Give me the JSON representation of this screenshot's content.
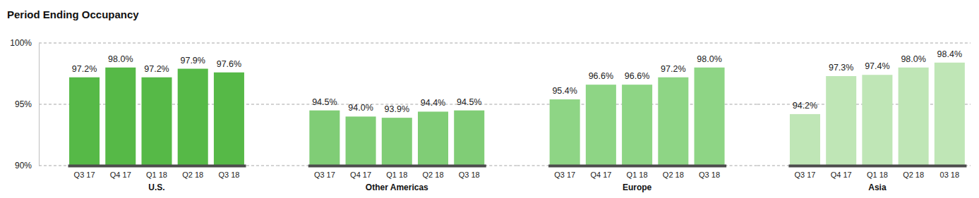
{
  "chart_data": [
    {
      "type": "bar",
      "title": "Period Ending Occupancy",
      "xlabel": "U.S.",
      "categories": [
        "Q3 17",
        "Q4 17",
        "Q1 18",
        "Q2 18",
        "Q3 18"
      ],
      "values": [
        97.2,
        98.0,
        97.2,
        97.9,
        97.6
      ],
      "value_labels": [
        "97.2%",
        "98.0%",
        "97.2%",
        "97.9%",
        "97.6%"
      ],
      "color": "#56b947",
      "ylim": [
        90,
        100
      ],
      "yticks": [
        {
          "value": 90,
          "label": "90%"
        },
        {
          "value": 95,
          "label": "95%"
        },
        {
          "value": 100,
          "label": "100%"
        }
      ],
      "grid": true,
      "data_labels": true,
      "tick_labels": true
    },
    {
      "type": "bar",
      "xlabel": "Other Americas",
      "categories": [
        "Q3 17",
        "Q4 17",
        "Q1 18",
        "Q2 18",
        "Q3 18"
      ],
      "values": [
        94.5,
        94.0,
        93.9,
        94.4,
        94.5
      ],
      "value_labels": [
        "94.5%",
        "94.0%",
        "93.9%",
        "94.4%",
        "94.5%"
      ],
      "color": "#80cd76",
      "ylim": [
        90,
        100
      ],
      "yticks": [
        90,
        95,
        100
      ],
      "grid": true,
      "data_labels": true,
      "tick_labels": "x"
    },
    {
      "type": "bar",
      "xlabel": "Europe",
      "categories": [
        "Q3 17",
        "Q4 17",
        "Q1 18",
        "Q2 18",
        "Q3 18"
      ],
      "values": [
        95.4,
        96.6,
        96.6,
        97.2,
        98.0
      ],
      "value_labels": [
        "95.4%",
        "96.6%",
        "96.6%",
        "97.2%",
        "98.0%"
      ],
      "color": "#8ed585",
      "ylim": [
        90,
        100
      ],
      "yticks": [
        90,
        95,
        100
      ],
      "grid": true,
      "data_labels": true,
      "tick_labels": "x"
    },
    {
      "type": "bar",
      "xlabel": "Asia",
      "categories": [
        "Q3 17",
        "Q4 17",
        "Q1 18",
        "Q2 18",
        "03 18"
      ],
      "values": [
        94.2,
        97.3,
        97.4,
        98.0,
        98.4
      ],
      "value_labels": [
        "94.2%",
        "97.3%",
        "97.4%",
        "98.0%",
        "98.4%"
      ],
      "color": "#bfe6b6",
      "ylim": [
        90,
        100
      ],
      "yticks": [
        90,
        95,
        100
      ],
      "grid": true,
      "data_labels": true,
      "tick_labels": "x"
    }
  ]
}
